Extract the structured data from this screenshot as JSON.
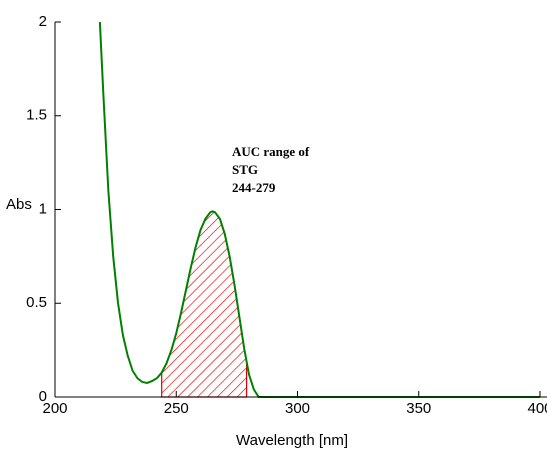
{
  "chart_data": {
    "type": "line",
    "xlabel": "Wavelength [nm]",
    "ylabel": "Abs",
    "x": [
      218.5,
      220,
      222,
      224,
      226,
      228,
      230,
      232,
      234,
      236,
      238,
      240,
      242,
      244,
      246,
      248,
      250,
      252,
      254,
      256,
      258,
      260,
      262,
      264,
      265,
      266,
      268,
      270,
      272,
      274,
      276,
      278,
      279,
      280,
      282,
      284,
      300,
      400
    ],
    "series": [
      {
        "name": "STG",
        "color": "#008000",
        "values": [
          2.0,
          1.6,
          1.1,
          0.75,
          0.5,
          0.33,
          0.22,
          0.14,
          0.1,
          0.08,
          0.075,
          0.085,
          0.1,
          0.13,
          0.18,
          0.25,
          0.34,
          0.45,
          0.57,
          0.69,
          0.8,
          0.89,
          0.95,
          0.985,
          0.99,
          0.985,
          0.95,
          0.87,
          0.75,
          0.6,
          0.43,
          0.26,
          0.19,
          0.12,
          0.04,
          0.0,
          0.0,
          0.0
        ]
      }
    ],
    "auc_range": [
      244,
      279
    ],
    "auc_color": "#e00000",
    "annotation": [
      "AUC range of",
      "STG",
      "244-279"
    ],
    "xlim": [
      200,
      400
    ],
    "ylim": [
      0,
      2
    ],
    "xticks": [
      200,
      250,
      300,
      350,
      400
    ],
    "yticks": [
      0,
      0.5,
      1,
      1.5,
      2
    ]
  }
}
